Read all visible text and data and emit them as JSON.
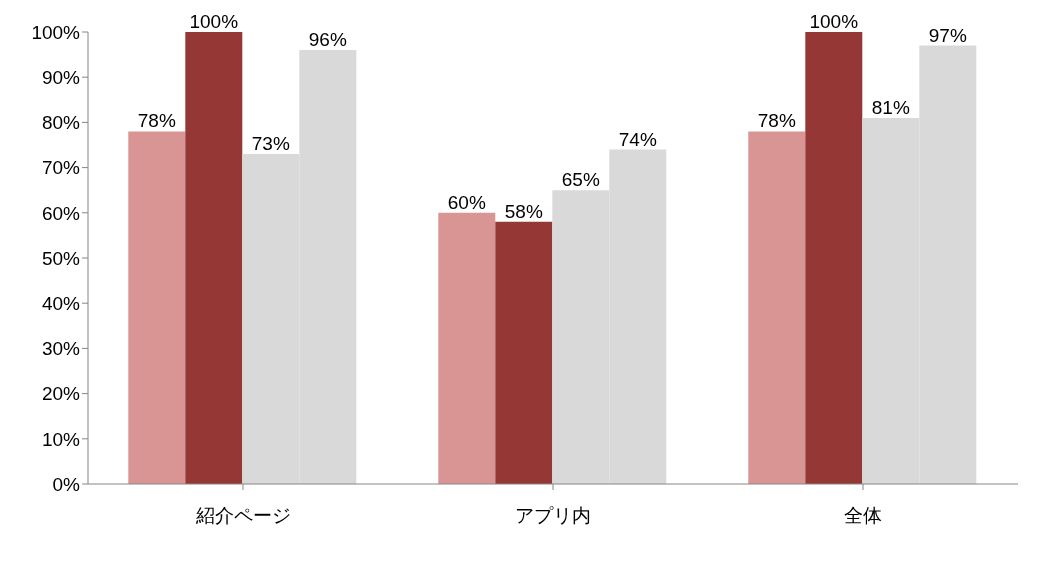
{
  "chart_data": {
    "type": "bar",
    "categories": [
      "紹介ページ",
      "アプリ内",
      "全体"
    ],
    "series": [
      {
        "color": "#d99594",
        "values": [
          78,
          60,
          78
        ],
        "value_labels": [
          "78%",
          "60%",
          "78%"
        ]
      },
      {
        "color": "#953735",
        "values": [
          100,
          58,
          100
        ],
        "value_labels": [
          "100%",
          "58%",
          "100%"
        ]
      },
      {
        "color": "#d9d9d9",
        "values": [
          73,
          65,
          81
        ],
        "value_labels": [
          "73%",
          "65%",
          "81%"
        ]
      },
      {
        "color": "#d9d9d9",
        "values": [
          96,
          74,
          97
        ],
        "value_labels": [
          "96%",
          "74%",
          "97%"
        ]
      }
    ],
    "ylim": [
      0,
      100
    ],
    "yticks": [
      {
        "value": 0,
        "label": "0%"
      },
      {
        "value": 10,
        "label": "10%"
      },
      {
        "value": 20,
        "label": "20%"
      },
      {
        "value": 30,
        "label": "30%"
      },
      {
        "value": 40,
        "label": "40%"
      },
      {
        "value": 50,
        "label": "50%"
      },
      {
        "value": 60,
        "label": "60%"
      },
      {
        "value": 70,
        "label": "70%"
      },
      {
        "value": 80,
        "label": "80%"
      },
      {
        "value": 90,
        "label": "90%"
      },
      {
        "value": 100,
        "label": "100%"
      }
    ],
    "grid": false,
    "legend": false
  }
}
